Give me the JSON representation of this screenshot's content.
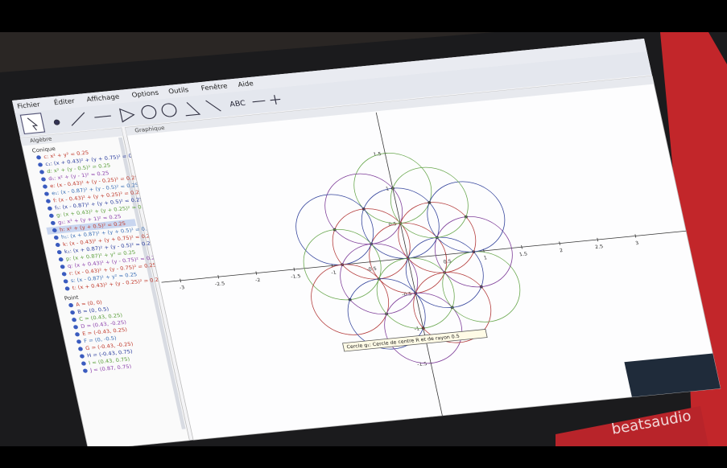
{
  "menu": [
    "Fichier",
    "Éditer",
    "Affichage",
    "Options",
    "Outils",
    "Fenêtre",
    "Aide"
  ],
  "toolbar": {
    "text_tool": "ABC"
  },
  "panels": {
    "algebra": "Algèbre",
    "graphics": "Graphique"
  },
  "algebra": {
    "groups": [
      {
        "title": "Conique",
        "items": [
          "c: x² + y² = 0.25",
          "c₁: (x + 0.43)² + (y + 0.75)² = 0.25",
          "d: x² + (y - 0.5)² = 0.25",
          "d₁: x² + (y - 1)² = 0.25",
          "e: (x - 0.43)² + (y - 0.25)² = 0.25",
          "e₁: (x - 0.87)² + (y - 0.5)² = 0.25",
          "f: (x - 0.43)² + (y + 0.25)² = 0.25",
          "f₁: (x - 0.87)² + (y + 0.5)² = 0.25",
          "g: (x + 0.43)² + (y + 0.25)² = 0.25",
          "g₁: x² + (y + 1)² = 0.25",
          "h: x² + (y + 0.5)² = 0.25",
          "h₁: (x + 0.87)² + (y + 0.5)² = 0.25",
          "k: (x - 0.43)² + (y + 0.75)² = 0.25",
          "k₁: (x + 0.87)² + (y - 0.5)² = 0.25",
          "p: (x + 0.87)² + y² = 0.25",
          "q: (x + 0.43)² + (y - 0.75)² = 0.25",
          "r: (x - 0.43)² + (y - 0.75)² = 0.25",
          "s: (x - 0.87)² + y² = 0.25",
          "t: (x + 0.43)² + (y - 0.25)² = 0.25"
        ]
      },
      {
        "title": "Point",
        "items": [
          "A = (0, 0)",
          "B = (0, 0.5)",
          "C = (0.43, 0.25)",
          "D = (0.43, -0.25)",
          "E = (-0.43, 0.25)",
          "F = (0, -0.5)",
          "G = (-0.43, -0.25)",
          "H = (-0.43, 0.75)",
          "I = (0.43, 0.75)",
          "J = (0.87, 0.75)"
        ]
      }
    ]
  },
  "axis": {
    "x_labels": [
      "-3",
      "-2.5",
      "-2",
      "-1.5",
      "-1",
      "-0.5",
      "0.5",
      "1",
      "1.5",
      "2",
      "2.5",
      "3"
    ],
    "y_labels": [
      "1.5",
      "1",
      "0.5",
      "-0.5",
      "-1",
      "-1.5"
    ]
  },
  "tooltip": "Cercle g₁: Cercle de centre R et de rayon 0.5",
  "brand": "beatsaudio"
}
